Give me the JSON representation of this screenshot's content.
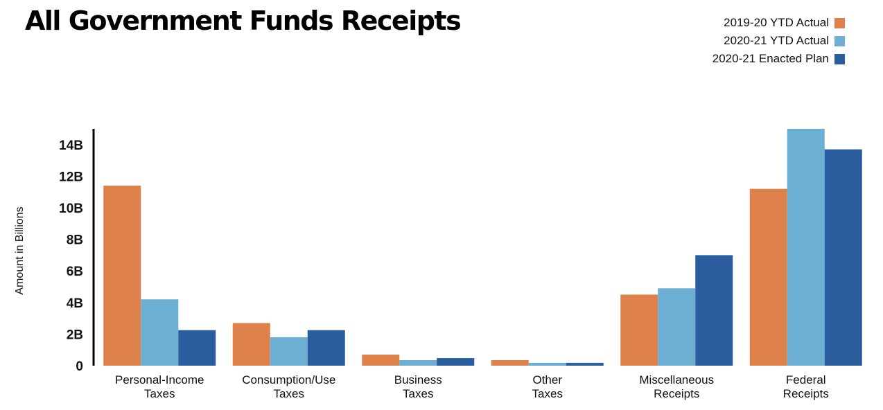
{
  "chart_data": {
    "type": "bar",
    "title": "All Government Funds Receipts",
    "xlabel": "",
    "ylabel": "Amount in Billions",
    "ylim": [
      0,
      15
    ],
    "grid": false,
    "legend_position": "top-right",
    "y_ticks": [
      {
        "value": 0,
        "label": "0"
      },
      {
        "value": 2,
        "label": "2B"
      },
      {
        "value": 4,
        "label": "4B"
      },
      {
        "value": 6,
        "label": "6B"
      },
      {
        "value": 8,
        "label": "8B"
      },
      {
        "value": 10,
        "label": "10B"
      },
      {
        "value": 12,
        "label": "12B"
      },
      {
        "value": 14,
        "label": "14B"
      }
    ],
    "categories": [
      [
        "Personal-Income",
        "Taxes"
      ],
      [
        "Consumption/Use",
        "Taxes"
      ],
      [
        "Business",
        "Taxes"
      ],
      [
        "Other",
        "Taxes"
      ],
      [
        "Miscellaneous",
        "Receipts"
      ],
      [
        "Federal",
        "Receipts"
      ]
    ],
    "series": [
      {
        "name": "2019-20 YTD Actual",
        "color": "#DE804A",
        "values": [
          11.4,
          2.7,
          0.7,
          0.35,
          4.5,
          11.2
        ]
      },
      {
        "name": "2020-21 YTD Actual",
        "color": "#6DAED3",
        "values": [
          4.2,
          1.8,
          0.35,
          0.18,
          4.9,
          15.0
        ]
      },
      {
        "name": "2020-21 Enacted Plan",
        "color": "#2A5D9E",
        "values": [
          2.25,
          2.25,
          0.48,
          0.18,
          7.0,
          13.7
        ]
      }
    ]
  }
}
